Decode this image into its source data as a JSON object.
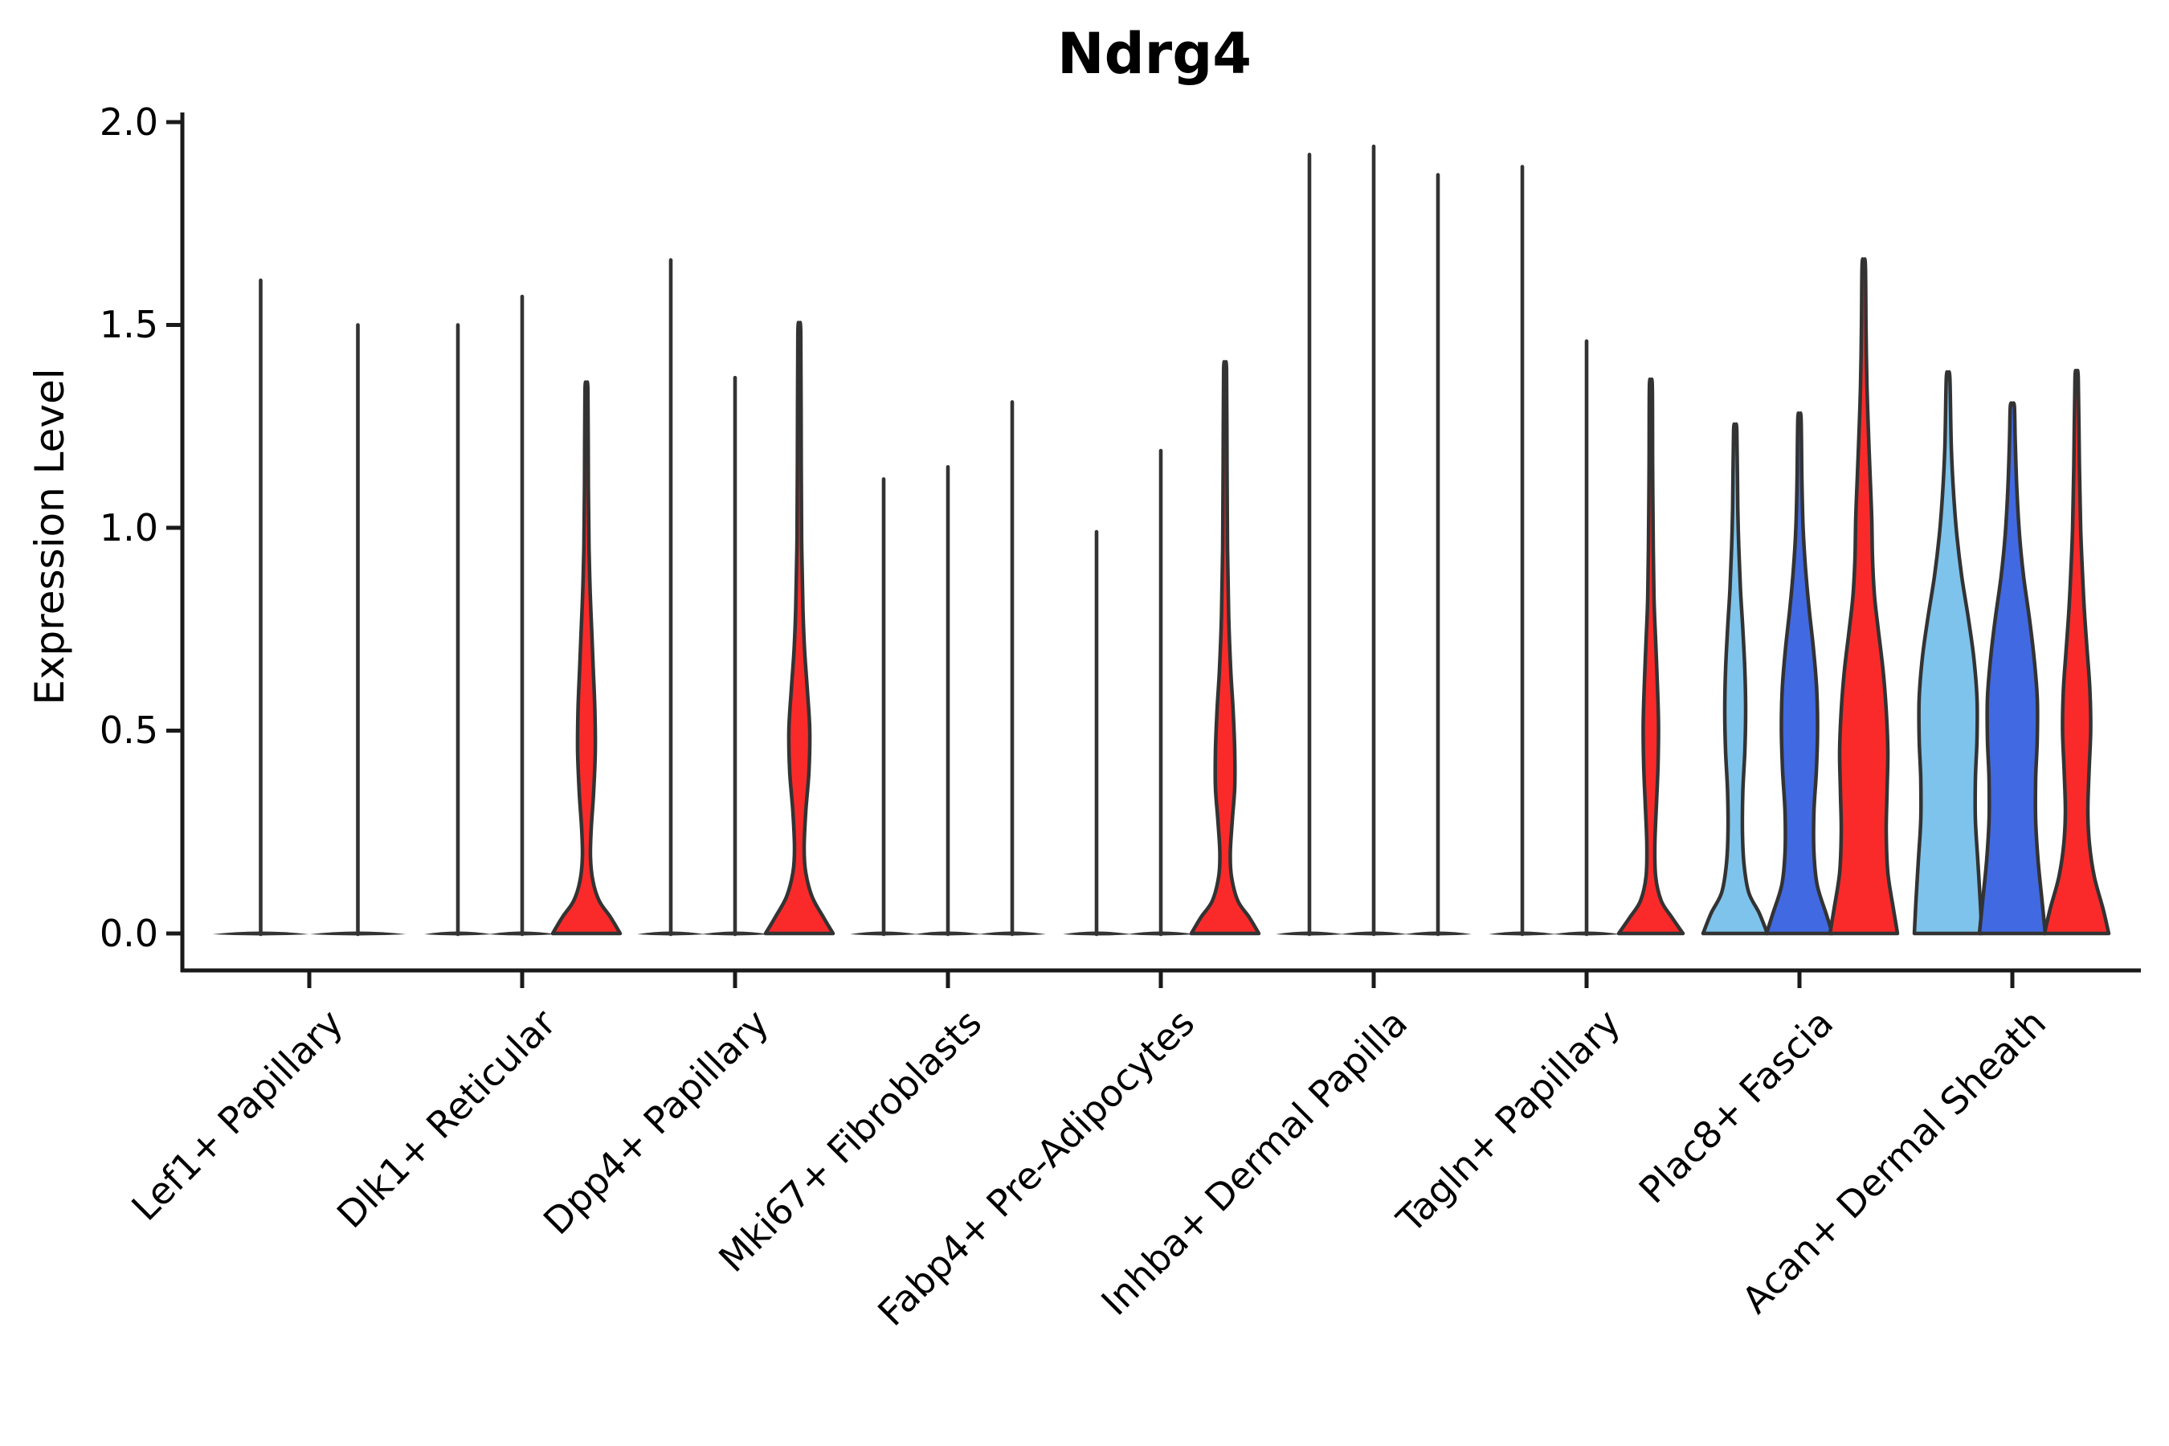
{
  "title": "Ndrg4",
  "axes": {
    "y_label": "Expression Level",
    "y_tick_labels": [
      "2.0",
      "1.5",
      "1.0",
      "0.5",
      "0.0"
    ],
    "x_categories": [
      "Lef1+ Papillary",
      "Dlk1+ Reticular",
      "Dpp4+ Papillary",
      "Mki67+ Fibroblasts",
      "Fabp4+ Pre-Adipocytes",
      "Inhba+ Dermal Papilla",
      "Tagln+ Papillary",
      "Plac8+ Fascia",
      "Acan+ Dermal Sheath"
    ]
  },
  "colors": {
    "red": "#FA2A2A",
    "royal_blue": "#4169E1",
    "light_blue": "#7EC3EB",
    "violin_outline": "#333333",
    "axis": "#1A1A1A",
    "background": "#FFFFFF"
  },
  "chart_data": {
    "type": "violin",
    "title": "Ndrg4",
    "ylabel": "Expression Level",
    "ylim": [
      0,
      2
    ],
    "yticks": [
      0.0,
      0.5,
      1.0,
      1.5,
      2.0
    ],
    "grid": false,
    "legend": false,
    "profile_units": "[expression_value, half_width_px]",
    "categories": [
      "Lef1+ Papillary",
      "Dlk1+ Reticular",
      "Dpp4+ Papillary",
      "Mki67+ Fibroblasts",
      "Fabp4+ Pre-Adipocytes",
      "Inhba+ Dermal Papilla",
      "Tagln+ Papillary",
      "Plac8+ Fascia",
      "Acan+ Dermal Sheath"
    ],
    "groups": [
      {
        "category": "Lef1+ Papillary",
        "violins": [
          {
            "style": "line",
            "max": 1.61
          },
          {
            "style": "line",
            "max": 1.5
          }
        ]
      },
      {
        "category": "Dlk1+ Reticular",
        "violins": [
          {
            "style": "line",
            "max": 1.5
          },
          {
            "style": "line",
            "max": 1.57
          },
          {
            "style": "filled",
            "color_key": "red",
            "max": 1.34,
            "profile": [
              [
                0,
                42
              ],
              [
                0.04,
                30
              ],
              [
                0.08,
                16
              ],
              [
                0.13,
                8
              ],
              [
                0.19,
                5
              ],
              [
                0.26,
                6
              ],
              [
                0.35,
                9
              ],
              [
                0.45,
                11
              ],
              [
                0.55,
                10.5
              ],
              [
                0.65,
                8.5
              ],
              [
                0.75,
                6.5
              ],
              [
                0.85,
                4.5
              ],
              [
                0.95,
                3.2
              ],
              [
                1.1,
                2.4
              ],
              [
                1.34,
                1.8
              ]
            ]
          }
        ]
      },
      {
        "category": "Dpp4+ Papillary",
        "violins": [
          {
            "style": "line",
            "max": 1.66
          },
          {
            "style": "line",
            "max": 1.37
          },
          {
            "style": "filled",
            "color_key": "red",
            "max": 1.48,
            "profile": [
              [
                0,
                42
              ],
              [
                0.04,
                30
              ],
              [
                0.09,
                16
              ],
              [
                0.15,
                8
              ],
              [
                0.21,
                6
              ],
              [
                0.3,
                8
              ],
              [
                0.4,
                12
              ],
              [
                0.5,
                13
              ],
              [
                0.6,
                10
              ],
              [
                0.7,
                6.5
              ],
              [
                0.8,
                4.5
              ],
              [
                0.95,
                3
              ],
              [
                1.15,
                2.4
              ],
              [
                1.48,
                1.8
              ]
            ]
          }
        ]
      },
      {
        "category": "Mki67+ Fibroblasts",
        "violins": [
          {
            "style": "line",
            "max": 1.12
          },
          {
            "style": "line",
            "max": 1.15
          },
          {
            "style": "line",
            "max": 1.31
          }
        ]
      },
      {
        "category": "Fabp4+ Pre-Adipocytes",
        "violins": [
          {
            "style": "line",
            "max": 0.99
          },
          {
            "style": "line",
            "max": 1.19
          },
          {
            "style": "filled",
            "color_key": "red",
            "max": 1.39,
            "profile": [
              [
                0,
                42
              ],
              [
                0.04,
                30
              ],
              [
                0.08,
                16
              ],
              [
                0.14,
                8
              ],
              [
                0.2,
                6.5
              ],
              [
                0.28,
                9
              ],
              [
                0.36,
                12
              ],
              [
                0.45,
                12
              ],
              [
                0.55,
                10
              ],
              [
                0.65,
                7
              ],
              [
                0.78,
                4.5
              ],
              [
                0.95,
                3
              ],
              [
                1.15,
                2.4
              ],
              [
                1.39,
                1.8
              ]
            ]
          }
        ]
      },
      {
        "category": "Inhba+ Dermal Papilla",
        "violins": [
          {
            "style": "line",
            "max": 1.92
          },
          {
            "style": "line",
            "max": 1.94
          },
          {
            "style": "line",
            "max": 1.87
          }
        ]
      },
      {
        "category": "Tagln+ Papillary",
        "violins": [
          {
            "style": "line",
            "max": 1.89
          },
          {
            "style": "line",
            "max": 1.46
          },
          {
            "style": "filled",
            "color_key": "red",
            "max": 1.35,
            "profile": [
              [
                0,
                40
              ],
              [
                0.04,
                26
              ],
              [
                0.08,
                13
              ],
              [
                0.14,
                6
              ],
              [
                0.22,
                5
              ],
              [
                0.32,
                7
              ],
              [
                0.42,
                9
              ],
              [
                0.52,
                9.5
              ],
              [
                0.62,
                8
              ],
              [
                0.72,
                6
              ],
              [
                0.82,
                4
              ],
              [
                0.95,
                3
              ],
              [
                1.15,
                2.2
              ],
              [
                1.35,
                1.8
              ]
            ]
          }
        ]
      },
      {
        "category": "Plac8+ Fascia",
        "violins": [
          {
            "style": "filled",
            "color_key": "light_blue",
            "max": 1.24,
            "profile": [
              [
                0,
                40
              ],
              [
                0.05,
                30
              ],
              [
                0.1,
                17
              ],
              [
                0.17,
                11
              ],
              [
                0.25,
                9
              ],
              [
                0.35,
                9.5
              ],
              [
                0.45,
                12
              ],
              [
                0.55,
                13
              ],
              [
                0.65,
                12
              ],
              [
                0.75,
                9.5
              ],
              [
                0.85,
                6.5
              ],
              [
                0.95,
                4.5
              ],
              [
                1.05,
                3.2
              ],
              [
                1.24,
                2
              ]
            ]
          },
          {
            "style": "filled",
            "color_key": "royal_blue",
            "max": 1.27,
            "profile": [
              [
                0,
                41
              ],
              [
                0.05,
                33
              ],
              [
                0.12,
                22
              ],
              [
                0.2,
                18
              ],
              [
                0.3,
                18
              ],
              [
                0.4,
                21
              ],
              [
                0.5,
                22.5
              ],
              [
                0.6,
                21.5
              ],
              [
                0.7,
                17.5
              ],
              [
                0.8,
                12
              ],
              [
                0.9,
                7.5
              ],
              [
                1.0,
                4.5
              ],
              [
                1.12,
                3
              ],
              [
                1.27,
                2
              ]
            ]
          },
          {
            "style": "filled",
            "color_key": "red",
            "max": 1.65,
            "profile": [
              [
                0,
                42
              ],
              [
                0.06,
                37
              ],
              [
                0.15,
                30
              ],
              [
                0.25,
                28
              ],
              [
                0.35,
                29
              ],
              [
                0.45,
                30
              ],
              [
                0.55,
                28
              ],
              [
                0.65,
                24
              ],
              [
                0.75,
                18
              ],
              [
                0.83,
                13.5
              ],
              [
                0.92,
                11
              ],
              [
                1.02,
                10
              ],
              [
                1.1,
                8.5
              ],
              [
                1.2,
                6.5
              ],
              [
                1.35,
                4
              ],
              [
                1.5,
                2.8
              ],
              [
                1.65,
                2
              ]
            ]
          }
        ]
      },
      {
        "category": "Acan+ Dermal Sheath",
        "violins": [
          {
            "style": "filled",
            "color_key": "light_blue",
            "max": 1.37,
            "profile": [
              [
                0,
                42
              ],
              [
                0.08,
                40
              ],
              [
                0.18,
                37
              ],
              [
                0.28,
                34
              ],
              [
                0.38,
                34
              ],
              [
                0.48,
                36
              ],
              [
                0.58,
                36
              ],
              [
                0.68,
                32
              ],
              [
                0.78,
                25
              ],
              [
                0.88,
                17
              ],
              [
                0.98,
                11
              ],
              [
                1.08,
                7
              ],
              [
                1.2,
                4
              ],
              [
                1.37,
                2.2
              ]
            ]
          },
          {
            "style": "filled",
            "color_key": "royal_blue",
            "max": 1.3,
            "profile": [
              [
                0,
                41
              ],
              [
                0.08,
                37
              ],
              [
                0.18,
                32
              ],
              [
                0.28,
                29
              ],
              [
                0.38,
                29
              ],
              [
                0.48,
                31
              ],
              [
                0.58,
                31
              ],
              [
                0.68,
                27
              ],
              [
                0.78,
                21
              ],
              [
                0.88,
                14
              ],
              [
                0.98,
                9
              ],
              [
                1.1,
                5.5
              ],
              [
                1.22,
                3.5
              ],
              [
                1.3,
                2.5
              ]
            ]
          },
          {
            "style": "filled",
            "color_key": "red",
            "max": 1.37,
            "profile": [
              [
                0,
                40
              ],
              [
                0.06,
                33
              ],
              [
                0.14,
                22
              ],
              [
                0.22,
                16
              ],
              [
                0.3,
                14
              ],
              [
                0.4,
                15.5
              ],
              [
                0.5,
                17.5
              ],
              [
                0.6,
                16.5
              ],
              [
                0.7,
                13
              ],
              [
                0.8,
                9.5
              ],
              [
                0.9,
                7
              ],
              [
                1.0,
                5
              ],
              [
                1.15,
                3.5
              ],
              [
                1.37,
                2
              ]
            ]
          }
        ]
      }
    ]
  }
}
